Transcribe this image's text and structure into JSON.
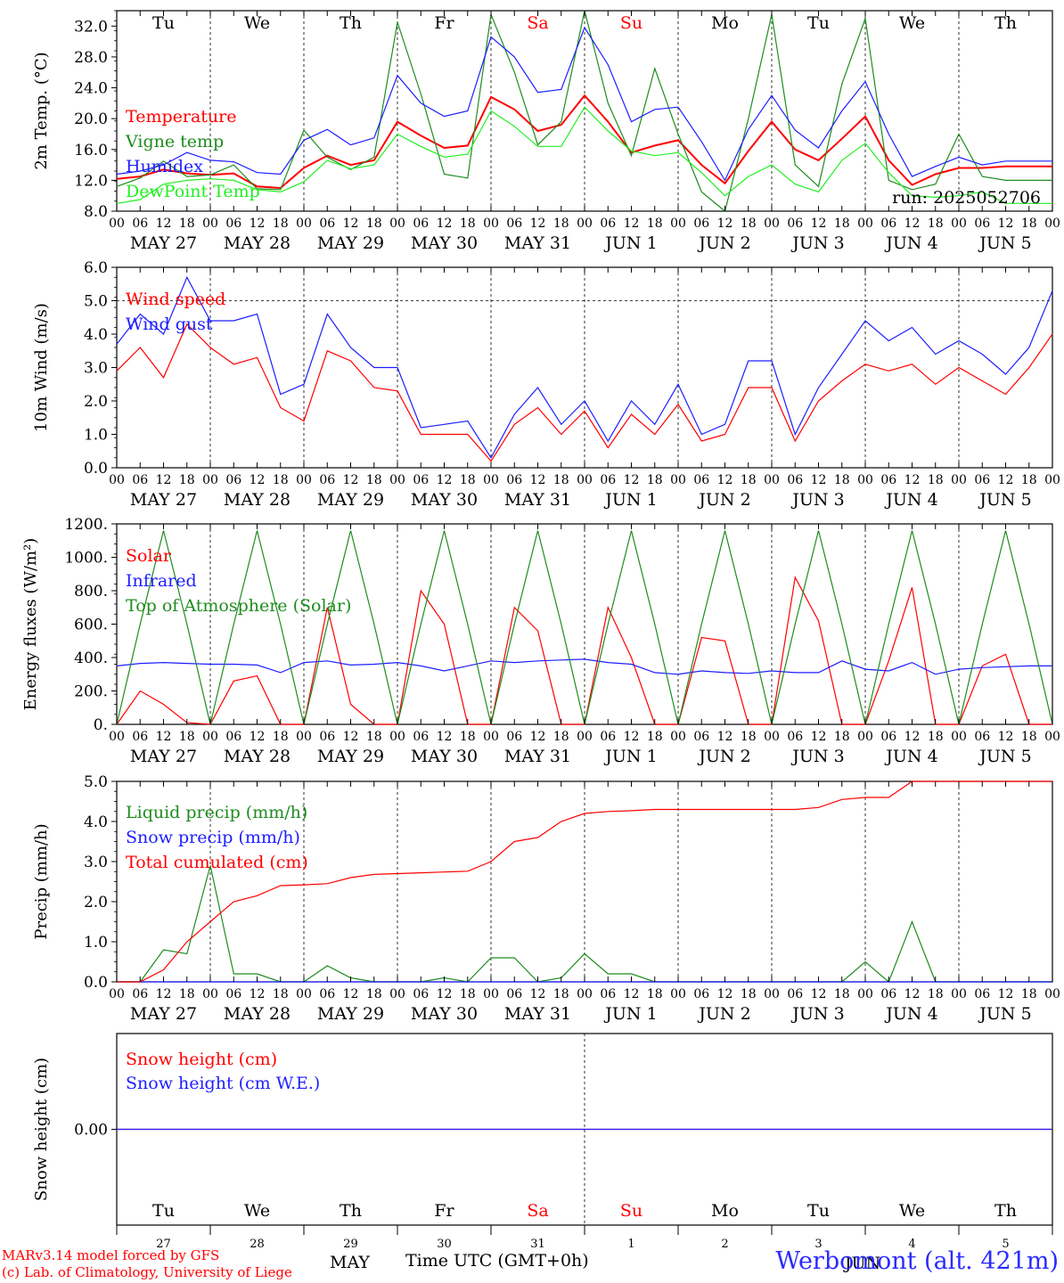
{
  "days": [
    "Tu",
    "We",
    "Th",
    "Fr",
    "Sa",
    "Su",
    "Mo",
    "Tu",
    "We",
    "Th"
  ],
  "weekend_days": [
    "Sa",
    "Su"
  ],
  "date_labels": [
    "MAY 27",
    "MAY 28",
    "MAY 29",
    "MAY 30",
    "MAY 31",
    "JUN  1",
    "JUN  2",
    "JUN  3",
    "JUN  4",
    "JUN  5"
  ],
  "hour_ticks": [
    "00",
    "06",
    "12",
    "18"
  ],
  "day_numbers": [
    "27",
    "28",
    "29",
    "30",
    "31",
    "1",
    "2",
    "3",
    "4",
    "5"
  ],
  "run_label": "run: 2025052706",
  "footer": {
    "model": "MARv3.14 model forced by GFS",
    "credit": "(c) Lab. of Climatology, University of Liege",
    "month": "MAY",
    "time_axis": "Time UTC (GMT+0h)",
    "station": "Werbomont (alt. 421m)",
    "month2": "JUN"
  },
  "colors": {
    "red": "#ff0000",
    "green": "#1e8c1e",
    "blue": "#1e1eff",
    "lightgreen": "#22ee22",
    "text": "#000000"
  },
  "chart_data": [
    {
      "type": "line",
      "ylabel": "2m Temp. (°C)",
      "ylim": [
        8.0,
        34.0
      ],
      "yticks": [
        "8.0",
        "12.0",
        "16.0",
        "20.0",
        "24.0",
        "28.0",
        "32.0"
      ],
      "x_hours": [
        0,
        6,
        12,
        18,
        24,
        30,
        36,
        42,
        48,
        54,
        60,
        66,
        72,
        78,
        84,
        90,
        96,
        102,
        108,
        114,
        120,
        126,
        132,
        138,
        144,
        150,
        156,
        162,
        168,
        174,
        180,
        186,
        192,
        198,
        204,
        210,
        216,
        222,
        228,
        234,
        240
      ],
      "series": [
        {
          "name": "Temperature",
          "color": "red",
          "values": [
            12.2,
            12.5,
            13.4,
            12.9,
            12.7,
            12.9,
            11.2,
            11.0,
            13.6,
            15.2,
            14.0,
            14.6,
            19.6,
            17.8,
            16.2,
            16.5,
            22.8,
            21.2,
            18.4,
            19.2,
            23.0,
            19.6,
            15.6,
            16.5,
            17.2,
            14.0,
            11.6,
            15.8,
            19.6,
            16.0,
            14.6,
            17.4,
            20.3,
            14.6,
            11.4,
            12.8,
            13.6,
            13.6,
            13.8,
            13.8,
            13.8
          ]
        },
        {
          "name": "Vigne temp",
          "color": "green",
          "values": [
            11.2,
            12.3,
            14.5,
            12.5,
            12.7,
            14.0,
            10.9,
            10.8,
            18.5,
            15.0,
            13.4,
            15.0,
            32.5,
            23.2,
            12.8,
            12.3,
            33.5,
            26.0,
            16.6,
            19.6,
            34.0,
            22.0,
            15.2,
            26.5,
            18.0,
            10.5,
            8.0,
            20.0,
            33.5,
            14.0,
            11.2,
            24.5,
            33.0,
            12.0,
            10.8,
            11.5,
            18.0,
            12.5,
            12.0,
            12.0,
            12.0
          ]
        },
        {
          "name": "Humidex",
          "color": "blue",
          "values": [
            12.8,
            13.2,
            14.0,
            15.6,
            14.6,
            14.4,
            13.0,
            12.8,
            17.2,
            18.6,
            16.6,
            17.5,
            25.6,
            22.0,
            20.3,
            21.0,
            30.6,
            28.0,
            23.4,
            23.8,
            31.8,
            27.0,
            19.6,
            21.2,
            21.5,
            17.0,
            12.0,
            18.6,
            23.0,
            18.5,
            16.2,
            21.0,
            24.8,
            18.0,
            12.5,
            13.8,
            15.0,
            14.0,
            14.5,
            14.5,
            14.5
          ]
        },
        {
          "name": "DewPoint Temp",
          "color": "lightgreen",
          "values": [
            9.0,
            9.5,
            11.5,
            12.0,
            12.2,
            12.0,
            10.8,
            10.5,
            11.8,
            14.6,
            13.5,
            14.0,
            18.0,
            16.4,
            15.0,
            15.4,
            21.0,
            19.0,
            16.4,
            16.4,
            21.5,
            18.4,
            15.8,
            15.2,
            15.6,
            13.0,
            10.0,
            12.5,
            14.0,
            11.5,
            10.5,
            14.6,
            16.8,
            13.0,
            10.0,
            9.8,
            10.0,
            10.5,
            9.0,
            9.0,
            9.0
          ]
        }
      ]
    },
    {
      "type": "line",
      "ylabel": "10m Wind (m/s)",
      "ylim": [
        0.0,
        6.0
      ],
      "yticks": [
        "0.0",
        "1.0",
        "2.0",
        "3.0",
        "4.0",
        "5.0",
        "6.0"
      ],
      "reference_line": 5.0,
      "x_hours": [
        0,
        6,
        12,
        18,
        24,
        30,
        36,
        42,
        48,
        54,
        60,
        66,
        72,
        78,
        84,
        90,
        96,
        102,
        108,
        114,
        120,
        126,
        132,
        138,
        144,
        150,
        156,
        162,
        168,
        174,
        180,
        186,
        192,
        198,
        204,
        210,
        216,
        222,
        228,
        234,
        240
      ],
      "series": [
        {
          "name": "Wind speed",
          "color": "red",
          "values": [
            2.9,
            3.6,
            2.7,
            4.3,
            3.6,
            3.1,
            3.3,
            1.8,
            1.4,
            3.5,
            3.2,
            2.4,
            2.3,
            1.0,
            1.0,
            1.0,
            0.2,
            1.3,
            1.8,
            1.0,
            1.7,
            0.6,
            1.6,
            1.0,
            1.9,
            0.8,
            1.0,
            2.4,
            2.4,
            0.8,
            2.0,
            2.6,
            3.1,
            2.9,
            3.1,
            2.5,
            3.0,
            2.6,
            2.2,
            3.0,
            4.0
          ]
        },
        {
          "name": "Wind gust",
          "color": "blue",
          "values": [
            3.7,
            4.6,
            4.0,
            5.7,
            4.4,
            4.4,
            4.6,
            2.2,
            2.5,
            4.6,
            3.6,
            3.0,
            3.0,
            1.2,
            1.3,
            1.4,
            0.3,
            1.6,
            2.4,
            1.3,
            2.0,
            0.8,
            2.0,
            1.3,
            2.5,
            1.0,
            1.3,
            3.2,
            3.2,
            1.0,
            2.4,
            3.4,
            4.4,
            3.8,
            4.2,
            3.4,
            3.8,
            3.4,
            2.8,
            3.6,
            5.3
          ]
        }
      ]
    },
    {
      "type": "line",
      "ylabel": "Energy fluxes (W/m²)",
      "ylim": [
        0,
        1200
      ],
      "yticks": [
        "0.",
        "200.",
        "400.",
        "600.",
        "800.",
        "1000.",
        "1200."
      ],
      "x_hours": [
        0,
        6,
        12,
        18,
        24,
        30,
        36,
        42,
        48,
        54,
        60,
        66,
        72,
        78,
        84,
        90,
        96,
        102,
        108,
        114,
        120,
        126,
        132,
        138,
        144,
        150,
        156,
        162,
        168,
        174,
        180,
        186,
        192,
        198,
        204,
        210,
        216,
        222,
        228,
        234,
        240
      ],
      "series": [
        {
          "name": "Solar",
          "color": "red",
          "values": [
            0,
            200,
            120,
            10,
            0,
            260,
            290,
            0,
            0,
            700,
            120,
            0,
            0,
            800,
            600,
            0,
            0,
            700,
            560,
            0,
            0,
            700,
            400,
            0,
            0,
            520,
            500,
            0,
            0,
            880,
            620,
            0,
            0,
            380,
            820,
            0,
            0,
            350,
            420,
            0,
            0
          ]
        },
        {
          "name": "Infrared",
          "color": "blue",
          "values": [
            350,
            365,
            370,
            365,
            360,
            360,
            355,
            310,
            370,
            380,
            355,
            360,
            370,
            350,
            320,
            350,
            380,
            370,
            380,
            385,
            390,
            370,
            360,
            310,
            300,
            320,
            310,
            305,
            320,
            310,
            310,
            380,
            330,
            320,
            370,
            300,
            330,
            340,
            345,
            350,
            350
          ]
        },
        {
          "name": "Top of Atmosphere (Solar)",
          "color": "green",
          "values": [
            0,
            600,
            1160,
            600,
            0,
            600,
            1160,
            600,
            0,
            600,
            1160,
            600,
            0,
            600,
            1160,
            600,
            0,
            600,
            1160,
            600,
            0,
            600,
            1160,
            600,
            0,
            600,
            1160,
            600,
            0,
            600,
            1160,
            600,
            0,
            600,
            1160,
            600,
            0,
            600,
            1160,
            600,
            0
          ]
        }
      ]
    },
    {
      "type": "line",
      "ylabel": "Precip (mm/h)",
      "ylim": [
        0.0,
        5.0
      ],
      "yticks": [
        "0.0",
        "1.0",
        "2.0",
        "3.0",
        "4.0",
        "5.0"
      ],
      "x_hours": [
        0,
        6,
        12,
        18,
        24,
        30,
        36,
        42,
        48,
        54,
        60,
        66,
        72,
        78,
        84,
        90,
        96,
        102,
        108,
        114,
        120,
        126,
        132,
        138,
        144,
        150,
        156,
        162,
        168,
        174,
        180,
        186,
        192,
        198,
        204,
        210,
        216,
        222,
        228,
        234,
        240
      ],
      "series": [
        {
          "name": "Liquid precip (mm/h)",
          "color": "green",
          "values": [
            0,
            0,
            0.8,
            0.7,
            2.9,
            0.2,
            0.2,
            0,
            0,
            0.4,
            0.1,
            0,
            0,
            0,
            0.1,
            0,
            0.6,
            0.6,
            0,
            0.1,
            0.7,
            0.2,
            0.2,
            0,
            0,
            0,
            0,
            0,
            0,
            0,
            0,
            0,
            0.5,
            0,
            1.5,
            0,
            0,
            0,
            0,
            0,
            0
          ]
        },
        {
          "name": "Snow precip (mm/h)",
          "color": "blue",
          "values": [
            0,
            0,
            0,
            0,
            0,
            0,
            0,
            0,
            0,
            0,
            0,
            0,
            0,
            0,
            0,
            0,
            0,
            0,
            0,
            0,
            0,
            0,
            0,
            0,
            0,
            0,
            0,
            0,
            0,
            0,
            0,
            0,
            0,
            0,
            0,
            0,
            0,
            0,
            0,
            0,
            0
          ]
        },
        {
          "name": "Total cumulated (cm)",
          "color": "red",
          "values": [
            0,
            0,
            0.3,
            1.0,
            1.5,
            2.0,
            2.15,
            2.4,
            2.42,
            2.45,
            2.6,
            2.68,
            2.7,
            2.72,
            2.74,
            2.76,
            3.0,
            3.5,
            3.6,
            4.0,
            4.2,
            4.25,
            4.27,
            4.3,
            4.3,
            4.3,
            4.3,
            4.3,
            4.3,
            4.3,
            4.35,
            4.55,
            4.6,
            4.6,
            5.0,
            5.0,
            5.0,
            5.0,
            5.0,
            5.0,
            5.0
          ]
        }
      ]
    },
    {
      "type": "line",
      "ylabel": "Snow height (cm)",
      "yticks": [
        "0.00"
      ],
      "x_hours": [
        0,
        240
      ],
      "series": [
        {
          "name": "Snow height (cm)",
          "color": "red",
          "values": [
            0,
            0
          ]
        },
        {
          "name": "Snow height (cm W.E.)",
          "color": "blue",
          "values": [
            0,
            0
          ]
        }
      ]
    }
  ]
}
